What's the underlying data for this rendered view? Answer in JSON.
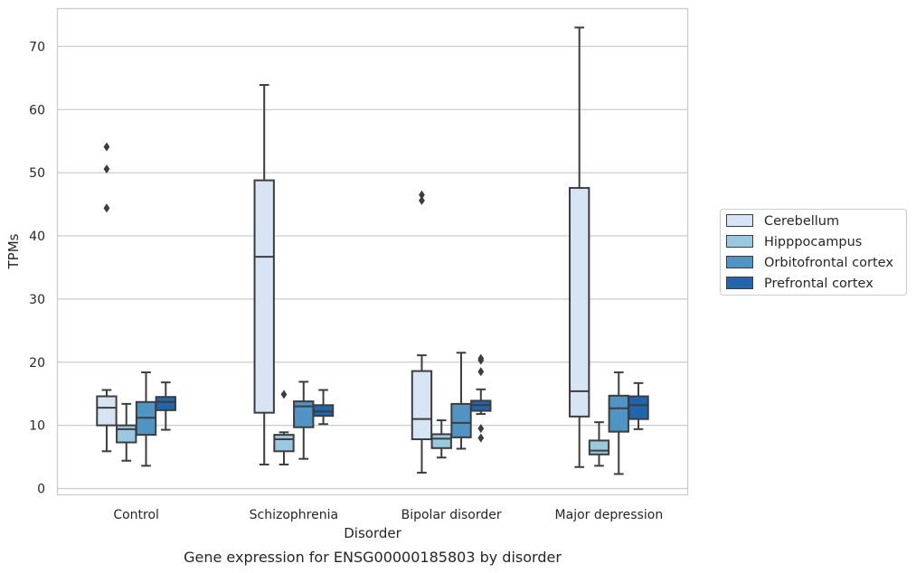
{
  "chart_data": {
    "type": "box",
    "title": "",
    "caption": "Gene expression for ENSG00000185803 by disorder",
    "xlabel": "Disorder",
    "ylabel": "TPMs",
    "ylim": [
      -1,
      76
    ],
    "yticks": [
      0,
      10,
      20,
      30,
      40,
      50,
      60,
      70
    ],
    "grid": "horizontal",
    "legend_position": "right",
    "categories": [
      "Control",
      "Schizophrenia",
      "Bipolar disorder",
      "Major depression"
    ],
    "series": [
      {
        "name": "Cerebellum",
        "color": "#d6e4f3",
        "boxes": [
          {
            "whislo": 5.9,
            "q1": 10.0,
            "med": 12.8,
            "q3": 14.6,
            "whishi": 15.6,
            "fliers": [
              44.4,
              50.6,
              54.1
            ]
          },
          {
            "whislo": 3.8,
            "q1": 12.0,
            "med": 36.7,
            "q3": 48.8,
            "whishi": 63.9,
            "fliers": []
          },
          {
            "whislo": 2.5,
            "q1": 7.8,
            "med": 11.0,
            "q3": 18.6,
            "whishi": 21.1,
            "fliers": [
              45.6,
              46.5
            ]
          },
          {
            "whislo": 3.4,
            "q1": 11.4,
            "med": 15.4,
            "q3": 47.6,
            "whishi": 73.0,
            "fliers": []
          }
        ]
      },
      {
        "name": "Hipppocampus",
        "color": "#9ac8e0",
        "boxes": [
          {
            "whislo": 4.4,
            "q1": 7.3,
            "med": 9.4,
            "q3": 10.0,
            "whishi": 13.4,
            "fliers": []
          },
          {
            "whislo": 3.8,
            "q1": 5.9,
            "med": 7.8,
            "q3": 8.5,
            "whishi": 8.9,
            "fliers": [
              14.9
            ]
          },
          {
            "whislo": 4.9,
            "q1": 6.4,
            "med": 7.9,
            "q3": 8.6,
            "whishi": 10.8,
            "fliers": []
          },
          {
            "whislo": 3.6,
            "q1": 5.4,
            "med": 6.0,
            "q3": 7.6,
            "whishi": 10.5,
            "fliers": []
          }
        ]
      },
      {
        "name": "Orbitofrontal cortex",
        "color": "#5094c4",
        "boxes": [
          {
            "whislo": 3.6,
            "q1": 8.5,
            "med": 11.2,
            "q3": 13.7,
            "whishi": 18.4,
            "fliers": []
          },
          {
            "whislo": 4.7,
            "q1": 9.7,
            "med": 13.0,
            "q3": 13.8,
            "whishi": 16.9,
            "fliers": []
          },
          {
            "whislo": 6.3,
            "q1": 8.1,
            "med": 10.4,
            "q3": 13.4,
            "whishi": 21.5,
            "fliers": []
          },
          {
            "whislo": 2.3,
            "q1": 9.0,
            "med": 12.7,
            "q3": 14.7,
            "whishi": 18.4,
            "fliers": []
          }
        ]
      },
      {
        "name": "Prefrontal cortex",
        "color": "#2166ac",
        "boxes": [
          {
            "whislo": 9.3,
            "q1": 12.4,
            "med": 13.7,
            "q3": 14.5,
            "whishi": 16.8,
            "fliers": []
          },
          {
            "whislo": 10.2,
            "q1": 11.5,
            "med": 12.2,
            "q3": 13.2,
            "whishi": 15.6,
            "fliers": []
          },
          {
            "whislo": 11.8,
            "q1": 12.3,
            "med": 13.2,
            "q3": 13.9,
            "whishi": 15.7,
            "fliers": [
              8.0,
              9.5,
              18.5,
              20.3,
              20.6
            ]
          },
          {
            "whislo": 9.4,
            "q1": 11.0,
            "med": 13.2,
            "q3": 14.6,
            "whishi": 16.7,
            "fliers": []
          }
        ]
      }
    ]
  }
}
